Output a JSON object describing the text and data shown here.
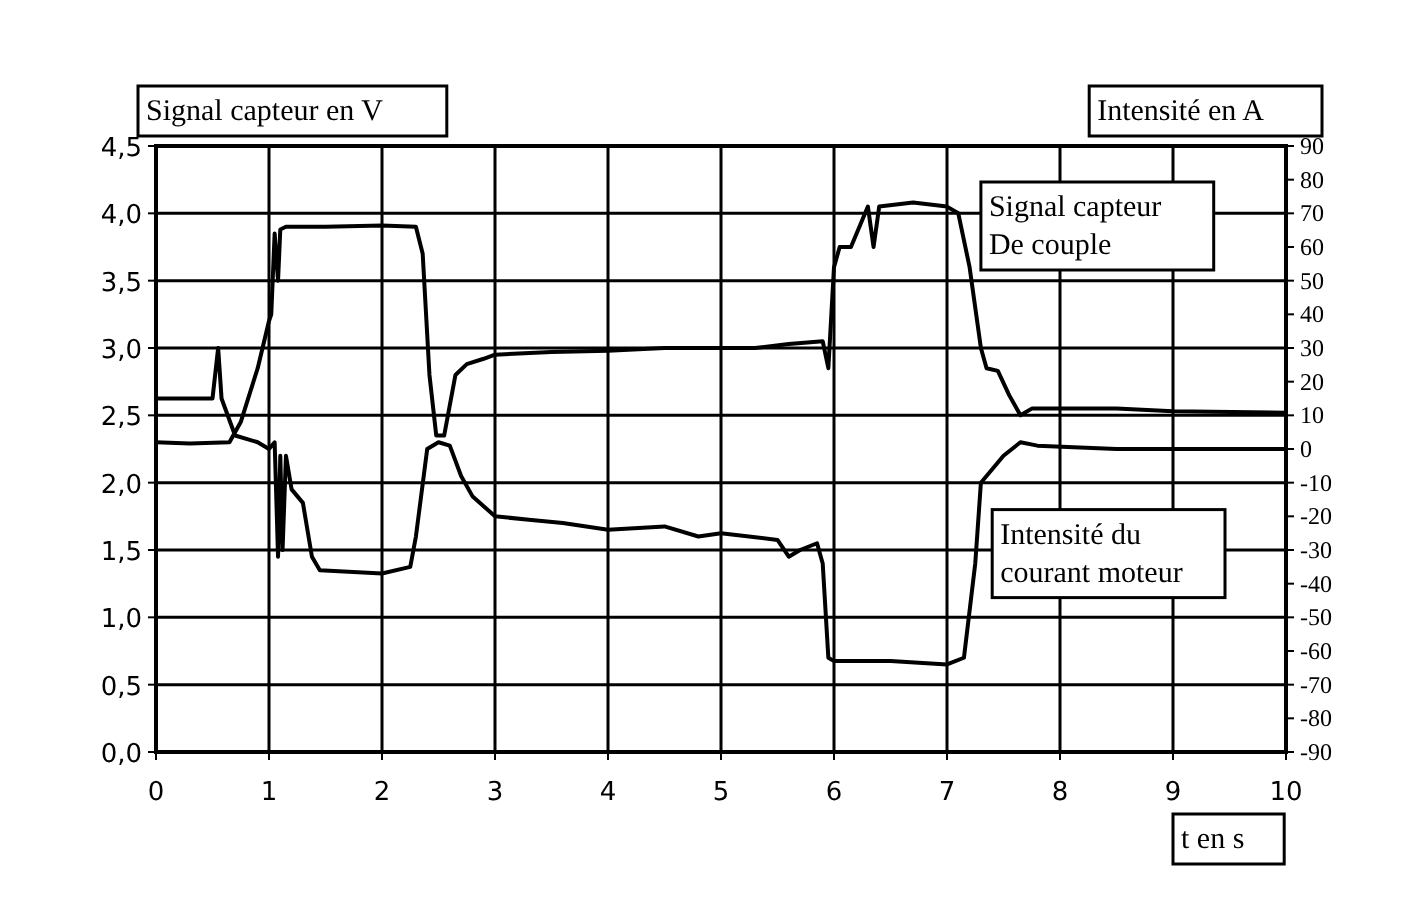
{
  "chart_data": {
    "type": "line",
    "ylabel": "Signal capteur en V",
    "y2label": "Intensité en A",
    "xlabel": "t en s",
    "xlim": [
      0,
      10
    ],
    "xticks": [
      0,
      1,
      2,
      3,
      4,
      5,
      6,
      7,
      8,
      9,
      10
    ],
    "ylim": [
      0,
      4.5
    ],
    "yticks": [
      {
        "value": 0,
        "label": "0,0"
      },
      {
        "value": 0.5,
        "label": "0,5"
      },
      {
        "value": 1,
        "label": "1,0"
      },
      {
        "value": 1.5,
        "label": "1,5"
      },
      {
        "value": 2,
        "label": "2,0"
      },
      {
        "value": 2.5,
        "label": "2,5"
      },
      {
        "value": 3,
        "label": "3,0"
      },
      {
        "value": 3.5,
        "label": "3,5"
      },
      {
        "value": 4,
        "label": "4,0"
      },
      {
        "value": 4.5,
        "label": "4,5"
      }
    ],
    "y2lim": [
      -90,
      90
    ],
    "y2ticks": [
      -90,
      -80,
      -70,
      -60,
      -50,
      -40,
      -30,
      -20,
      -10,
      0,
      10,
      20,
      30,
      40,
      50,
      60,
      70,
      80,
      90
    ],
    "grid": true,
    "line_style": "solid",
    "series": [
      {
        "name": "Signal capteur\nDe couple",
        "color": "#000000",
        "x": [
          0,
          0.3,
          0.65,
          0.75,
          0.9,
          1.0,
          1.02,
          1.05,
          1.08,
          1.1,
          1.15,
          1.5,
          2.0,
          2.3,
          2.36,
          2.42,
          2.48,
          2.55,
          2.65,
          2.75,
          2.9,
          3.0,
          3.5,
          4.0,
          4.5,
          5.0,
          5.3,
          5.6,
          5.9,
          5.95,
          6.0,
          6.05,
          6.15,
          6.25,
          6.3,
          6.35,
          6.4,
          6.7,
          7.0,
          7.1,
          7.2,
          7.3,
          7.35,
          7.45,
          7.55,
          7.65,
          7.75,
          8.0,
          8.5,
          9.0,
          10
        ],
        "values": [
          2.3,
          2.29,
          2.3,
          2.45,
          2.85,
          3.2,
          3.25,
          3.85,
          3.5,
          3.88,
          3.9,
          3.9,
          3.91,
          3.9,
          3.7,
          2.8,
          2.35,
          2.35,
          2.8,
          2.88,
          2.92,
          2.95,
          2.97,
          2.98,
          3.0,
          3.0,
          3.0,
          3.03,
          3.05,
          2.85,
          3.6,
          3.75,
          3.75,
          3.95,
          4.05,
          3.75,
          4.05,
          4.08,
          4.05,
          4.0,
          3.6,
          3.0,
          2.85,
          2.83,
          2.65,
          2.5,
          2.55,
          2.55,
          2.55,
          2.53,
          2.52
        ]
      },
      {
        "name": "Intensité du\ncourant moteur",
        "color": "#000000",
        "axis": "y2",
        "x": [
          0,
          0.5,
          0.55,
          0.58,
          0.7,
          0.9,
          1.0,
          1.05,
          1.08,
          1.1,
          1.12,
          1.15,
          1.2,
          1.3,
          1.38,
          1.45,
          2.0,
          2.25,
          2.3,
          2.4,
          2.5,
          2.6,
          2.7,
          2.8,
          3.0,
          3.3,
          3.6,
          4.0,
          4.5,
          4.8,
          5.0,
          5.5,
          5.6,
          5.7,
          5.85,
          5.9,
          5.95,
          6.0,
          6.5,
          7.0,
          7.15,
          7.25,
          7.3,
          7.4,
          7.5,
          7.65,
          7.8,
          8.5,
          10
        ],
        "values": [
          15,
          15,
          30,
          15,
          4,
          2,
          0,
          2,
          -32,
          -2,
          -30,
          -2,
          -12,
          -16,
          -32,
          -36,
          -37,
          -35,
          -26,
          0,
          2,
          1,
          -8,
          -14,
          -20,
          -21,
          -22,
          -24,
          -23,
          -26,
          -25,
          -27,
          -32,
          -30,
          -28,
          -34,
          -62,
          -63,
          -63,
          -64,
          -62,
          -34,
          -10,
          -6,
          -2,
          2,
          1,
          0,
          0
        ]
      }
    ]
  }
}
